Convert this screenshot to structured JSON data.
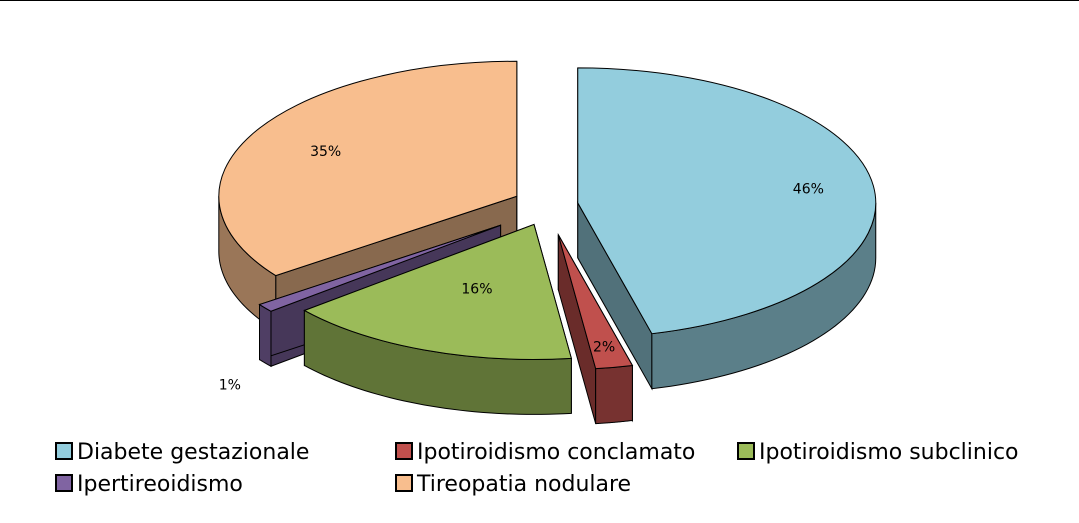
{
  "chart_data": {
    "type": "pie",
    "style": "3d-exploded",
    "categories": [
      "Diabete gestazionale",
      "Ipotiroidismo conclamato",
      "Ipotiroidismo subclinico",
      "Ipertireoidismo",
      "Tireopatia nodulare"
    ],
    "values": [
      46,
      2,
      16,
      1,
      35
    ],
    "labels": [
      "46%",
      "2%",
      "16%",
      "1%",
      "35%"
    ],
    "colors": [
      "#93CDDD",
      "#C0504D",
      "#9BBB59",
      "#8064A2",
      "#F8BE8E"
    ],
    "title": "",
    "legend_position": "bottom"
  }
}
